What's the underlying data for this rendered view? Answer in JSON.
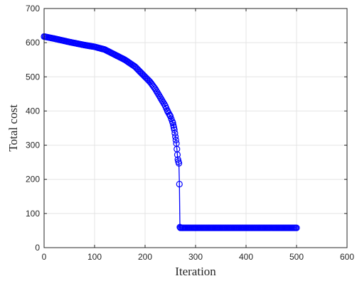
{
  "chart_data": {
    "type": "line",
    "title": "",
    "xlabel": "Iteration",
    "ylabel": "Total cost",
    "xlim": [
      0,
      600
    ],
    "ylim": [
      0,
      700
    ],
    "xticks": [
      "0",
      "100",
      "200",
      "300",
      "400",
      "500",
      "600"
    ],
    "yticks": [
      "0",
      "100",
      "200",
      "300",
      "400",
      "500",
      "600",
      "700"
    ],
    "grid": true,
    "legend": "none",
    "marker": "circle",
    "series_color": "#0000ff",
    "keypoints": {
      "x": [
        0,
        20,
        50,
        80,
        100,
        120,
        140,
        160,
        180,
        190,
        200,
        210,
        220,
        230,
        240,
        245,
        250,
        255,
        258,
        260,
        262,
        264,
        265,
        266,
        267,
        268,
        269,
        270,
        275,
        300,
        400,
        500
      ],
      "y": [
        618,
        612,
        602,
        593,
        588,
        580,
        565,
        550,
        530,
        515,
        500,
        485,
        465,
        440,
        415,
        398,
        385,
        365,
        345,
        325,
        305,
        272,
        258,
        252,
        247,
        186,
        60,
        58,
        58,
        58,
        58,
        58
      ]
    }
  }
}
